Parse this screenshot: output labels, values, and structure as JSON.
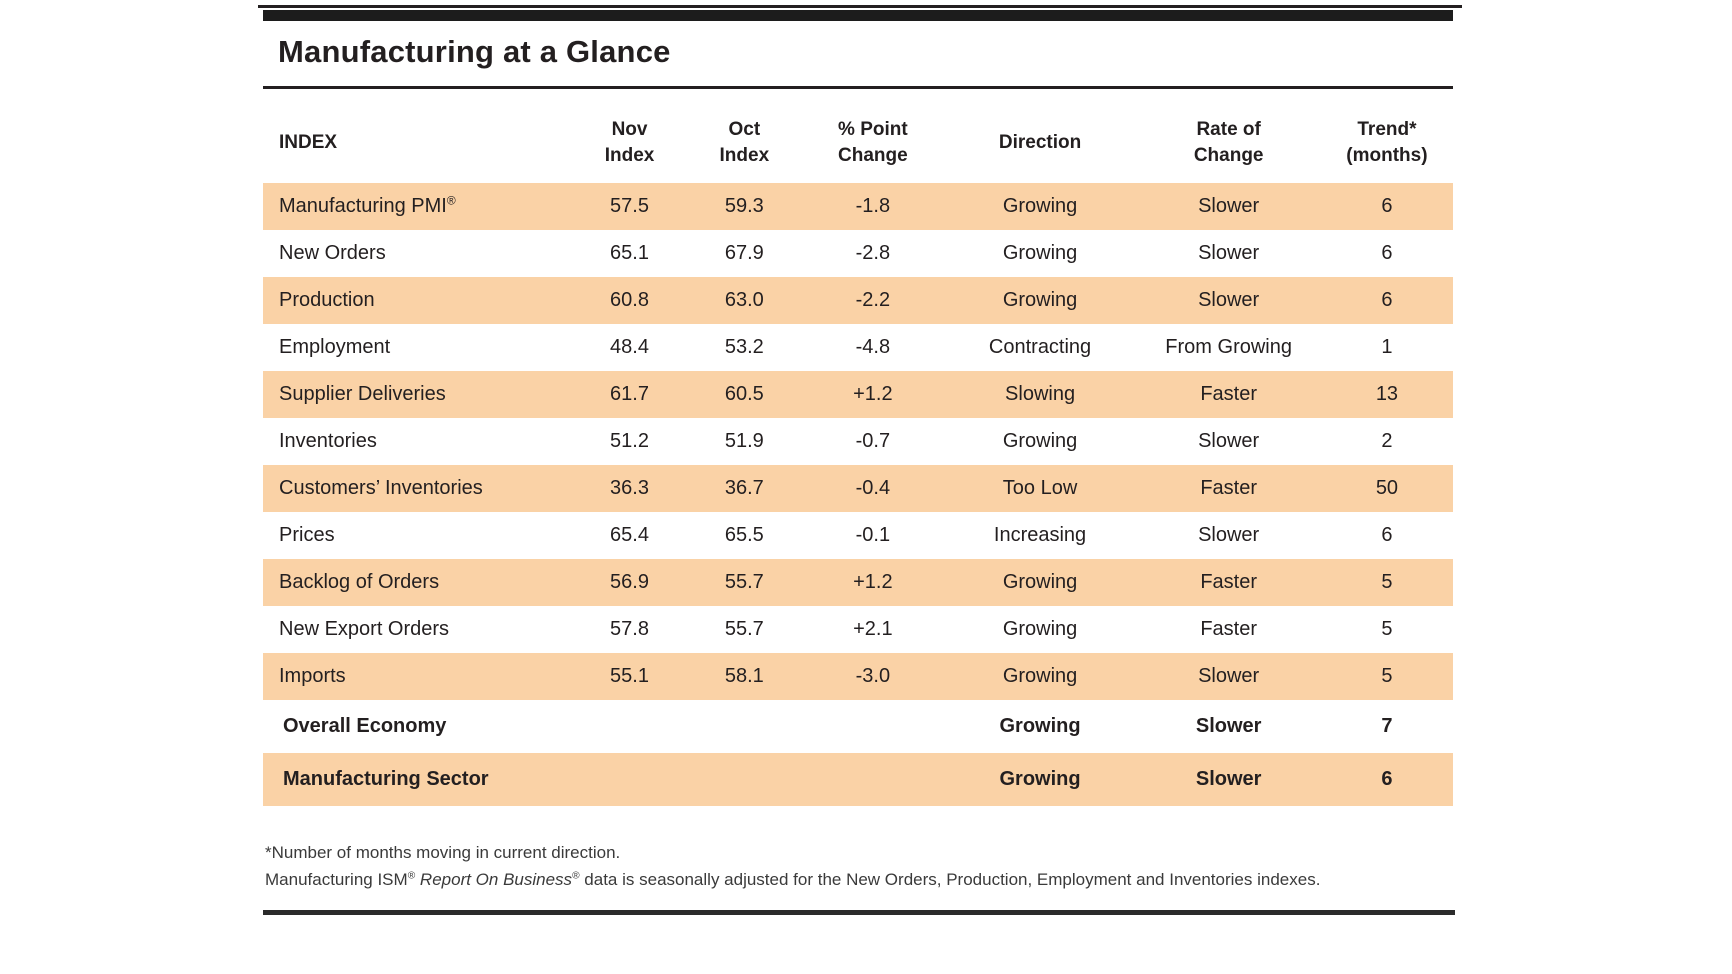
{
  "page": {
    "title": "Manufacturing at a Glance"
  },
  "table": {
    "headers": {
      "index": "INDEX",
      "nov": {
        "line1": "Nov",
        "line2": "Index"
      },
      "oct": {
        "line1": "Oct",
        "line2": "Index"
      },
      "change": {
        "line1": "% Point",
        "line2": "Change"
      },
      "direction": "Direction",
      "rate": {
        "line1": "Rate of",
        "line2": "Change"
      },
      "trend": {
        "line1": "Trend*",
        "line2": "(months)"
      }
    },
    "rows": [
      {
        "name": "Manufacturing PMI",
        "sup": "®",
        "nov": "57.5",
        "oct": "59.3",
        "change": "-1.8",
        "direction": "Growing",
        "rate": "Slower",
        "trend": "6"
      },
      {
        "name": "New Orders",
        "nov": "65.1",
        "oct": "67.9",
        "change": "-2.8",
        "direction": "Growing",
        "rate": "Slower",
        "trend": "6"
      },
      {
        "name": "Production",
        "nov": "60.8",
        "oct": "63.0",
        "change": "-2.2",
        "direction": "Growing",
        "rate": "Slower",
        "trend": "6"
      },
      {
        "name": "Employment",
        "nov": "48.4",
        "oct": "53.2",
        "change": "-4.8",
        "direction": "Contracting",
        "rate": "From Growing",
        "trend": "1"
      },
      {
        "name": "Supplier Deliveries",
        "nov": "61.7",
        "oct": "60.5",
        "change": "+1.2",
        "direction": "Slowing",
        "rate": "Faster",
        "trend": "13"
      },
      {
        "name": "Inventories",
        "nov": "51.2",
        "oct": "51.9",
        "change": "-0.7",
        "direction": "Growing",
        "rate": "Slower",
        "trend": "2"
      },
      {
        "name": "Customers’ Inventories",
        "nov": "36.3",
        "oct": "36.7",
        "change": "-0.4",
        "direction": "Too Low",
        "rate": "Faster",
        "trend": "50"
      },
      {
        "name": "Prices",
        "nov": "65.4",
        "oct": "65.5",
        "change": "-0.1",
        "direction": "Increasing",
        "rate": "Slower",
        "trend": "6"
      },
      {
        "name": "Backlog of Orders",
        "nov": "56.9",
        "oct": "55.7",
        "change": "+1.2",
        "direction": "Growing",
        "rate": "Faster",
        "trend": "5"
      },
      {
        "name": "New Export Orders",
        "nov": "57.8",
        "oct": "55.7",
        "change": "+2.1",
        "direction": "Growing",
        "rate": "Faster",
        "trend": "5"
      },
      {
        "name": "Imports",
        "nov": "55.1",
        "oct": "58.1",
        "change": "-3.0",
        "direction": "Growing",
        "rate": "Slower",
        "trend": "5"
      },
      {
        "name": "Overall Economy",
        "summary": true,
        "nov": "",
        "oct": "",
        "change": "",
        "direction": "Growing",
        "rate": "Slower",
        "trend": "7"
      },
      {
        "name": "Manufacturing Sector",
        "summary": true,
        "nov": "",
        "oct": "",
        "change": "",
        "direction": "Growing",
        "rate": "Slower",
        "trend": "6"
      }
    ]
  },
  "footnotes": {
    "line1": "*Number of months moving in current direction.",
    "line2": {
      "part1": "Manufacturing ISM",
      "sup1": "®",
      "italic": " Report On Business",
      "sup2": "®",
      "part2": " data is seasonally adjusted for the New Orders, Production, Employment and Inventories indexes."
    }
  },
  "colors": {
    "row_shade": "#FAD2A6",
    "text": "#231F20",
    "rule": "#231F20"
  }
}
